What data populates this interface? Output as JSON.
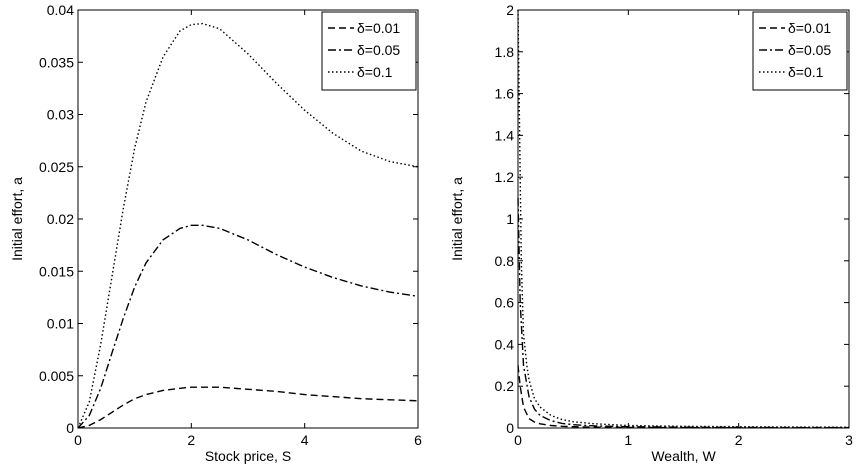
{
  "chart_data": [
    {
      "type": "line",
      "xlabel": "Stock price, S",
      "ylabel": "Initial effort, a",
      "xlim": [
        0,
        6
      ],
      "ylim": [
        0,
        0.04
      ],
      "xticks": [
        "0",
        "2",
        "4",
        "6"
      ],
      "yticks": [
        "0",
        "0.005",
        "0.01",
        "0.015",
        "0.02",
        "0.025",
        "0.03",
        "0.035",
        "0.04"
      ],
      "grid": false,
      "legend_position": "top-right",
      "series": [
        {
          "name": "δ=0.01",
          "style": "dashed",
          "x": [
            0,
            0.2,
            0.4,
            0.6,
            0.8,
            1.0,
            1.2,
            1.5,
            1.8,
            2.0,
            2.2,
            2.5,
            3.0,
            3.5,
            4.0,
            4.5,
            5.0,
            5.5,
            6.0
          ],
          "y": [
            0,
            0.00025,
            0.0008,
            0.0015,
            0.0022,
            0.0028,
            0.0032,
            0.0036,
            0.0038,
            0.0039,
            0.0039,
            0.0039,
            0.0037,
            0.0035,
            0.0032,
            0.003,
            0.0028,
            0.0027,
            0.0026
          ]
        },
        {
          "name": "δ=0.05",
          "style": "dashdot",
          "x": [
            0,
            0.2,
            0.4,
            0.6,
            0.8,
            1.0,
            1.2,
            1.5,
            1.8,
            2.0,
            2.2,
            2.5,
            3.0,
            3.5,
            4.0,
            4.5,
            5.0,
            5.5,
            6.0
          ],
          "y": [
            0,
            0.0012,
            0.0038,
            0.0072,
            0.0105,
            0.0135,
            0.0158,
            0.018,
            0.0191,
            0.0194,
            0.0194,
            0.0191,
            0.018,
            0.0166,
            0.0154,
            0.0144,
            0.0136,
            0.013,
            0.0126
          ]
        },
        {
          "name": "δ=0.1",
          "style": "dotted",
          "x": [
            0,
            0.2,
            0.4,
            0.6,
            0.8,
            1.0,
            1.2,
            1.5,
            1.8,
            2.0,
            2.2,
            2.5,
            3.0,
            3.5,
            4.0,
            4.5,
            5.0,
            5.5,
            6.0
          ],
          "y": [
            0,
            0.0025,
            0.008,
            0.0145,
            0.021,
            0.0268,
            0.0312,
            0.0355,
            0.038,
            0.0386,
            0.0387,
            0.0382,
            0.0358,
            0.033,
            0.0304,
            0.0282,
            0.0265,
            0.0255,
            0.025
          ]
        }
      ]
    },
    {
      "type": "line",
      "xlabel": "Wealth, W",
      "ylabel": "Initial effort, a",
      "xlim": [
        0,
        3
      ],
      "ylim": [
        0,
        2
      ],
      "xticks": [
        "0",
        "1",
        "2",
        "3"
      ],
      "yticks": [
        "0",
        "0.2",
        "0.4",
        "0.6",
        "0.8",
        "1",
        "1.2",
        "1.4",
        "1.6",
        "1.8",
        "2"
      ],
      "grid": false,
      "legend_position": "top-right",
      "series": [
        {
          "name": "δ=0.01",
          "style": "dashed",
          "x": [
            0,
            0.02,
            0.05,
            0.1,
            0.15,
            0.2,
            0.3,
            0.4,
            0.5,
            0.7,
            1.0,
            1.5,
            2.0,
            2.5,
            3.0
          ],
          "y": [
            0.3,
            0.2,
            0.1,
            0.045,
            0.028,
            0.02,
            0.012,
            0.008,
            0.006,
            0.004,
            0.003,
            0.002,
            0.001,
            0.001,
            0.001
          ]
        },
        {
          "name": "δ=0.05",
          "style": "dashdot",
          "x": [
            0,
            0.02,
            0.05,
            0.1,
            0.15,
            0.2,
            0.3,
            0.4,
            0.5,
            0.7,
            1.0,
            1.5,
            2.0,
            2.5,
            3.0
          ],
          "y": [
            1.1,
            0.6,
            0.3,
            0.15,
            0.09,
            0.06,
            0.035,
            0.022,
            0.016,
            0.01,
            0.006,
            0.004,
            0.003,
            0.002,
            0.002
          ]
        },
        {
          "name": "δ=0.1",
          "style": "dotted",
          "x": [
            0,
            0.01,
            0.03,
            0.05,
            0.08,
            0.1,
            0.15,
            0.2,
            0.3,
            0.4,
            0.5,
            0.7,
            1.0,
            1.5,
            2.0,
            2.5,
            3.0
          ],
          "y": [
            2.0,
            1.6,
            0.8,
            0.45,
            0.3,
            0.23,
            0.14,
            0.1,
            0.06,
            0.04,
            0.03,
            0.02,
            0.012,
            0.008,
            0.006,
            0.005,
            0.004
          ]
        }
      ]
    }
  ]
}
